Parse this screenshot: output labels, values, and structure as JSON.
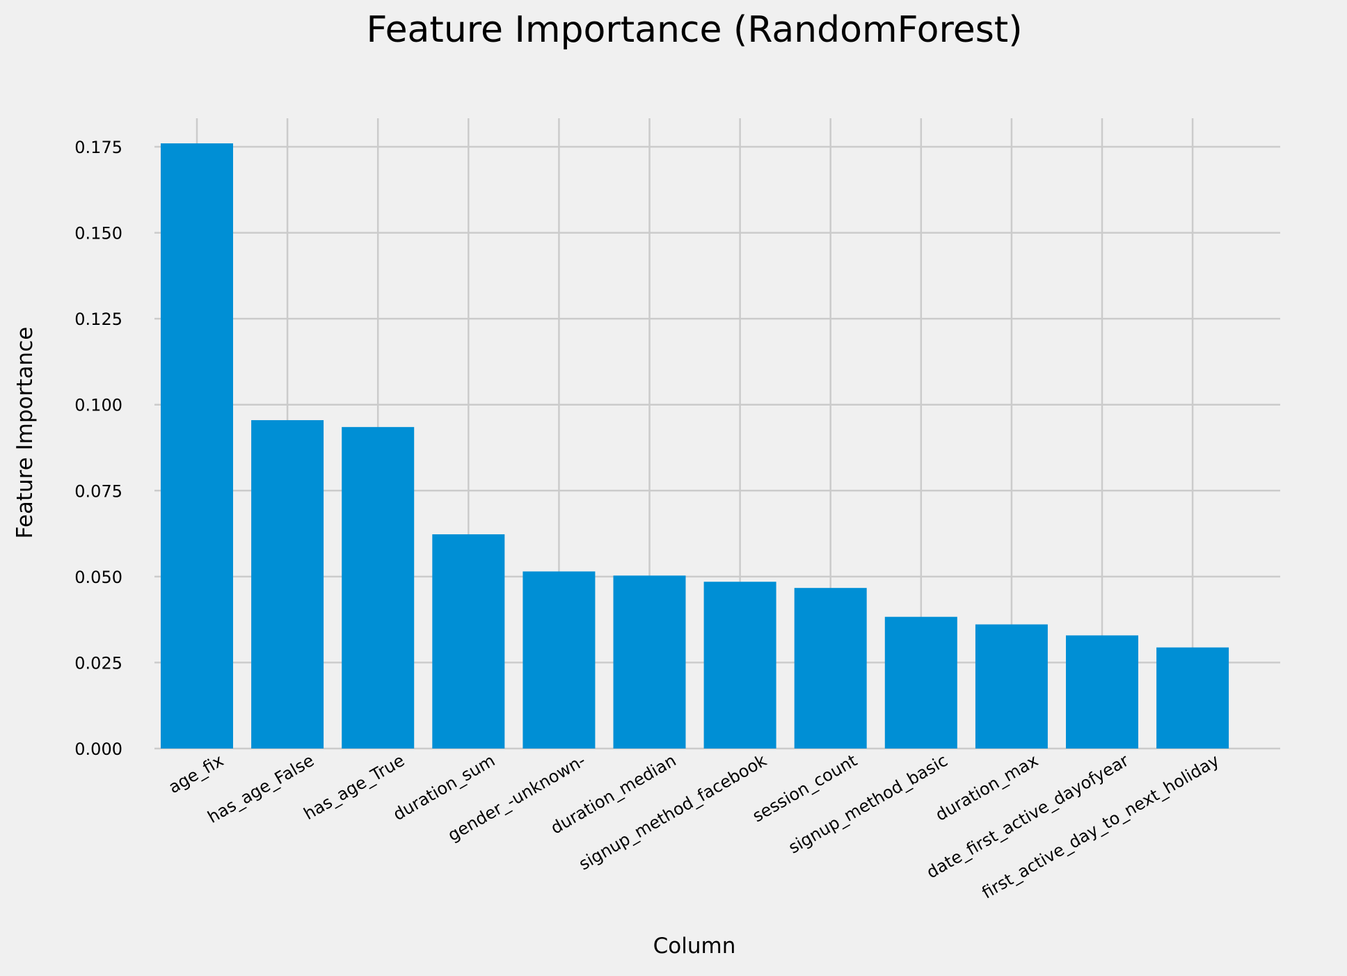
{
  "chart_data": {
    "type": "bar",
    "title": "Feature Importance (RandomForest)",
    "xlabel": "Column",
    "ylabel": "Feature Importance",
    "categories": [
      "age_fix",
      "has_age_False",
      "has_age_True",
      "duration_sum",
      "gender_-unknown-",
      "duration_median",
      "signup_method_facebook",
      "session_count",
      "signup_method_basic",
      "duration_max",
      "date_first_active_dayofyear",
      "first_active_day_to_next_holiday"
    ],
    "values": [
      0.176,
      0.0955,
      0.0935,
      0.0623,
      0.0515,
      0.0503,
      0.0485,
      0.0467,
      0.0383,
      0.0361,
      0.0329,
      0.0294
    ],
    "ylim": [
      0,
      0.1833
    ],
    "yticks": [
      0.0,
      0.025,
      0.05,
      0.075,
      0.1,
      0.125,
      0.15,
      0.175
    ],
    "ytick_labels": [
      "0.000",
      "0.025",
      "0.050",
      "0.075",
      "0.100",
      "0.125",
      "0.150",
      "0.175"
    ],
    "grid": true,
    "colors": {
      "background": "#f0f0f0",
      "bar": "#008fd5",
      "grid": "#cbcbcb"
    }
  }
}
